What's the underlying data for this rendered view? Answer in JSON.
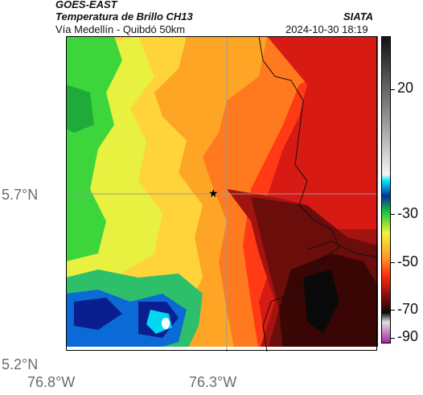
{
  "header": {
    "satellite": "GOES-EAST",
    "product": "Temperatura de Brillo CH13",
    "region": "Vía Medellín - Quibdó 50km",
    "org": "SIATA",
    "datetime": "2024-10-30 18:19"
  },
  "axes": {
    "lat_ticks": [
      "5.7°N",
      "5.2°N"
    ],
    "lon_ticks": [
      "76.8°W",
      "76.3°W"
    ]
  },
  "colorbar": {
    "ticks": [
      "20",
      "-30",
      "-50",
      "-70",
      "-90"
    ]
  },
  "legend_colors": {
    "warm": "#ff3a14",
    "cold": "#0a0a0a",
    "mid": "#ffff33",
    "coolest_cloud": "#00e0ff"
  }
}
